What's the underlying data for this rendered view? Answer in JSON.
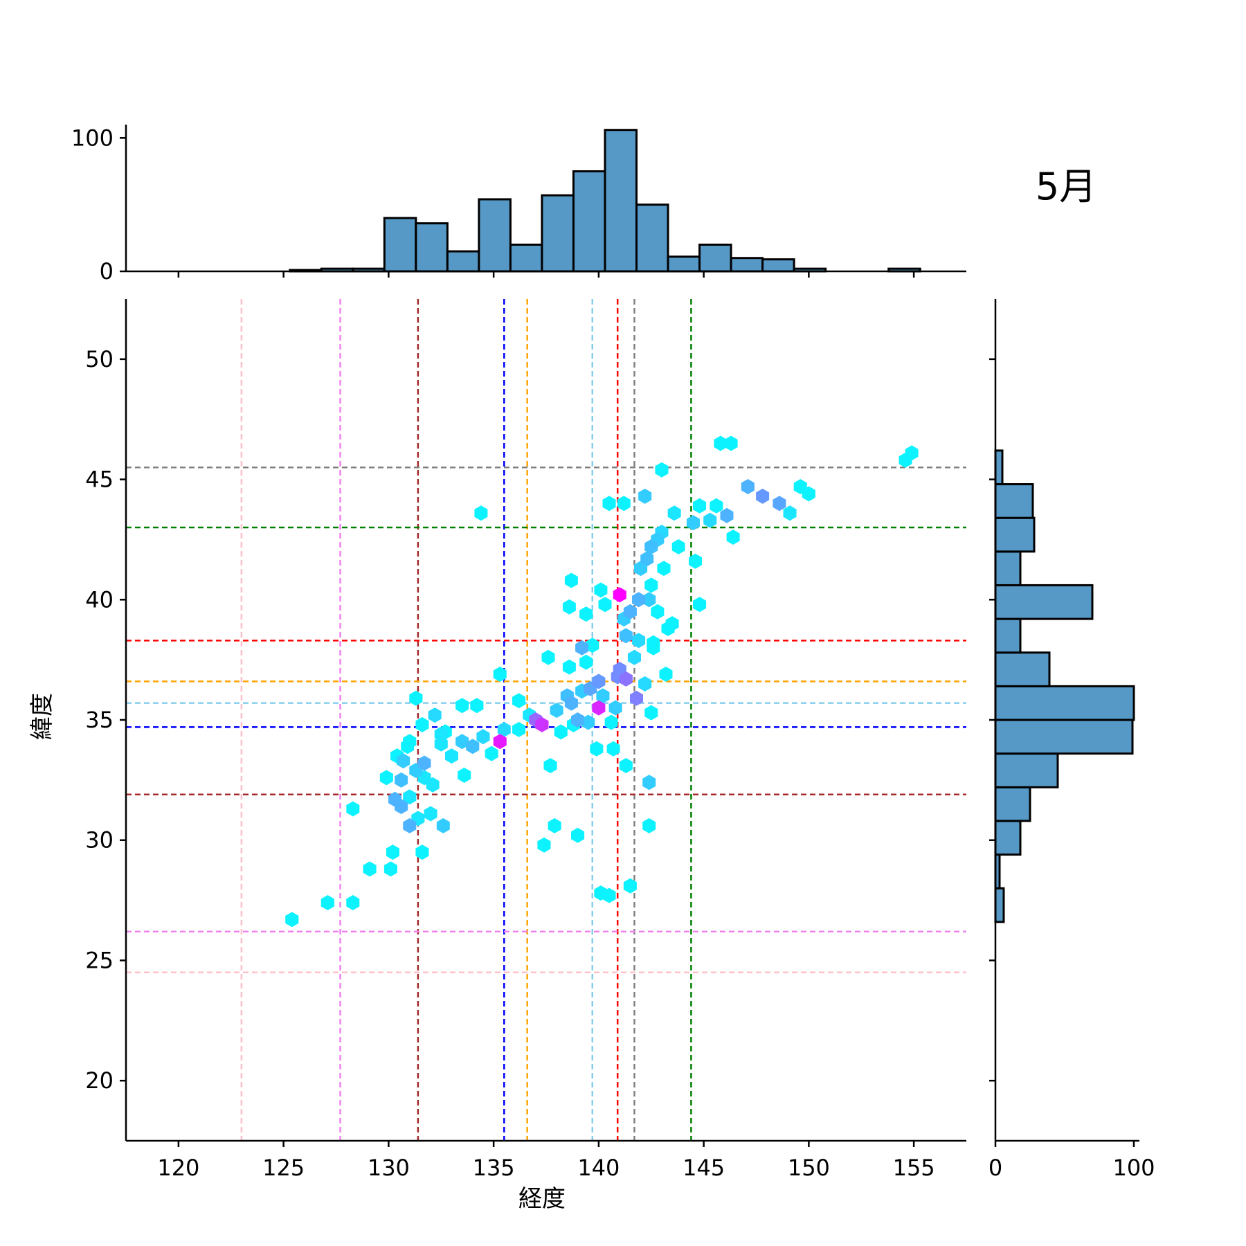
{
  "chart_data": {
    "type": "jointplot-hexbin",
    "title": "5月",
    "xlabel": "経度",
    "ylabel": "緯度",
    "xlim": [
      117.5,
      157.5
    ],
    "ylim": [
      17.5,
      52.5
    ],
    "xticks": [
      120,
      125,
      130,
      135,
      140,
      145,
      150,
      155
    ],
    "yticks": [
      20,
      25,
      30,
      35,
      40,
      45,
      50
    ],
    "colors": {
      "histogram_fill": "#5799c6",
      "histogram_edge": "#000000",
      "hex_low": "#00ffff",
      "hex_high": "#ff00ff"
    },
    "reference_lines": {
      "vertical": [
        {
          "x": 123.0,
          "color": "#ffc0cb"
        },
        {
          "x": 127.7,
          "color": "#ee82ee"
        },
        {
          "x": 131.4,
          "color": "#a52a2a"
        },
        {
          "x": 135.5,
          "color": "#0000ff"
        },
        {
          "x": 136.6,
          "color": "#ffa500"
        },
        {
          "x": 139.7,
          "color": "#87ceeb"
        },
        {
          "x": 140.9,
          "color": "#ff0000"
        },
        {
          "x": 141.7,
          "color": "#808080"
        },
        {
          "x": 144.4,
          "color": "#008000"
        }
      ],
      "horizontal": [
        {
          "y": 24.5,
          "color": "#ffc0cb"
        },
        {
          "y": 26.2,
          "color": "#ee82ee"
        },
        {
          "y": 31.9,
          "color": "#a52a2a"
        },
        {
          "y": 34.7,
          "color": "#0000ff"
        },
        {
          "y": 35.7,
          "color": "#87ceeb"
        },
        {
          "y": 36.6,
          "color": "#ffa500"
        },
        {
          "y": 38.3,
          "color": "#ff0000"
        },
        {
          "y": 43.0,
          "color": "#008000"
        },
        {
          "y": 45.5,
          "color": "#808080"
        }
      ]
    },
    "top_hist": {
      "bin_edges": [
        125.3,
        126.8,
        128.3,
        129.8,
        131.3,
        132.8,
        134.3,
        135.8,
        137.3,
        138.8,
        140.3,
        141.8,
        143.3,
        144.8,
        146.3,
        147.8,
        149.3,
        150.8,
        152.3,
        153.8,
        155.3
      ],
      "counts": [
        1,
        2,
        2,
        40,
        36,
        15,
        54,
        20,
        57,
        75,
        106,
        50,
        11,
        20,
        10,
        9,
        2,
        0,
        0,
        2
      ],
      "yticks": [
        0,
        100
      ]
    },
    "right_hist": {
      "bin_edges": [
        26.6,
        28.0,
        29.4,
        30.8,
        32.2,
        33.6,
        35.0,
        36.4,
        37.8,
        39.2,
        40.6,
        42.0,
        43.4,
        44.8,
        46.2
      ],
      "counts": [
        6,
        3,
        18,
        25,
        45,
        99,
        100,
        39,
        18,
        70,
        18,
        28,
        27,
        5
      ],
      "xticks": [
        0,
        100
      ]
    },
    "hexbins": [
      [
        141.0,
        40.2,
        1.0
      ],
      [
        135.3,
        34.1,
        0.9
      ],
      [
        137.3,
        34.8,
        0.8
      ],
      [
        140.0,
        35.5,
        0.85
      ],
      [
        137.0,
        35.0,
        0.6
      ],
      [
        141.3,
        36.7,
        0.55
      ],
      [
        141.8,
        35.9,
        0.5
      ],
      [
        140.9,
        36.8,
        0.45
      ],
      [
        141.0,
        37.1,
        0.45
      ],
      [
        140.0,
        36.6,
        0.4
      ],
      [
        139.6,
        36.3,
        0.35
      ],
      [
        138.7,
        35.7,
        0.3
      ],
      [
        139.0,
        35.0,
        0.3
      ],
      [
        138.5,
        36.0,
        0.25
      ],
      [
        139.2,
        38.0,
        0.3
      ],
      [
        139.5,
        34.9,
        0.2
      ],
      [
        140.2,
        36.0,
        0.2
      ],
      [
        140.8,
        35.5,
        0.2
      ],
      [
        141.3,
        38.5,
        0.25
      ],
      [
        141.2,
        39.2,
        0.2
      ],
      [
        141.5,
        39.5,
        0.3
      ],
      [
        141.9,
        40.0,
        0.3
      ],
      [
        142.4,
        40.0,
        0.2
      ],
      [
        142.0,
        41.3,
        0.2
      ],
      [
        142.3,
        41.7,
        0.25
      ],
      [
        142.5,
        42.2,
        0.25
      ],
      [
        142.8,
        42.5,
        0.2
      ],
      [
        143.0,
        42.8,
        0.15
      ],
      [
        144.5,
        43.2,
        0.2
      ],
      [
        145.3,
        43.3,
        0.15
      ],
      [
        146.1,
        43.5,
        0.3
      ],
      [
        147.1,
        44.7,
        0.3
      ],
      [
        147.8,
        44.3,
        0.4
      ],
      [
        148.6,
        44.0,
        0.35
      ],
      [
        149.1,
        43.6,
        0.1
      ],
      [
        141.7,
        37.6,
        0.15
      ],
      [
        141.9,
        38.3,
        0.15
      ],
      [
        139.2,
        36.2,
        0.2
      ],
      [
        138.0,
        35.4,
        0.2
      ],
      [
        136.7,
        35.2,
        0.1
      ],
      [
        134.5,
        34.3,
        0.15
      ],
      [
        134.0,
        33.9,
        0.25
      ],
      [
        133.5,
        34.1,
        0.2
      ],
      [
        132.5,
        34.4,
        0.1
      ],
      [
        131.7,
        33.2,
        0.3
      ],
      [
        131.3,
        32.9,
        0.2
      ],
      [
        130.6,
        32.5,
        0.25
      ],
      [
        130.3,
        31.7,
        0.3
      ],
      [
        130.6,
        31.4,
        0.3
      ],
      [
        131.0,
        30.6,
        0.3
      ],
      [
        130.7,
        33.3,
        0.2
      ],
      [
        131.0,
        31.8,
        0.1
      ],
      [
        131.4,
        30.9,
        0.1
      ],
      [
        132.0,
        31.1,
        0.1
      ],
      [
        132.6,
        30.6,
        0.2
      ],
      [
        132.1,
        32.3,
        0.1
      ],
      [
        131.7,
        32.6,
        0.1
      ],
      [
        132.2,
        35.2,
        0.15
      ],
      [
        132.5,
        34.0,
        0.1
      ],
      [
        133.0,
        33.5,
        0.1
      ],
      [
        142.4,
        32.4,
        0.2
      ],
      [
        142.2,
        44.3,
        0.2
      ],
      [
        143.0,
        45.4,
        0.05
      ],
      [
        145.8,
        46.5,
        0.05
      ],
      [
        146.3,
        46.5,
        0.05
      ],
      [
        154.9,
        46.1,
        0.05
      ],
      [
        154.6,
        45.8,
        0.05
      ],
      [
        149.6,
        44.7,
        0.05
      ],
      [
        150.0,
        44.4,
        0.05
      ],
      [
        146.4,
        42.6,
        0.05
      ],
      [
        144.6,
        41.6,
        0.05
      ],
      [
        144.8,
        39.8,
        0.05
      ],
      [
        143.3,
        38.8,
        0.05
      ],
      [
        143.5,
        39.0,
        0.05
      ],
      [
        143.2,
        36.9,
        0.05
      ],
      [
        142.6,
        38.0,
        0.05
      ],
      [
        142.6,
        38.2,
        0.05
      ],
      [
        142.4,
        30.6,
        0.05
      ],
      [
        141.5,
        28.1,
        0.05
      ],
      [
        140.5,
        27.7,
        0.05
      ],
      [
        140.1,
        27.8,
        0.05
      ],
      [
        139.0,
        30.2,
        0.05
      ],
      [
        137.9,
        30.6,
        0.05
      ],
      [
        137.4,
        29.8,
        0.05
      ],
      [
        137.7,
        33.1,
        0.05
      ],
      [
        137.6,
        37.6,
        0.05
      ],
      [
        135.3,
        36.9,
        0.05
      ],
      [
        134.4,
        43.6,
        0.05
      ],
      [
        131.3,
        35.9,
        0.05
      ],
      [
        133.5,
        35.6,
        0.05
      ],
      [
        134.2,
        35.6,
        0.05
      ],
      [
        128.3,
        27.4,
        0.05
      ],
      [
        127.1,
        27.4,
        0.05
      ],
      [
        125.4,
        26.7,
        0.05
      ],
      [
        129.1,
        28.8,
        0.05
      ],
      [
        130.1,
        28.8,
        0.05
      ],
      [
        130.2,
        29.5,
        0.05
      ],
      [
        131.6,
        29.5,
        0.05
      ],
      [
        128.3,
        31.3,
        0.05
      ],
      [
        129.9,
        32.6,
        0.05
      ],
      [
        130.4,
        33.5,
        0.05
      ],
      [
        131.0,
        34.1,
        0.05
      ],
      [
        133.6,
        32.7,
        0.05
      ],
      [
        134.9,
        33.6,
        0.05
      ],
      [
        136.2,
        35.8,
        0.05
      ],
      [
        138.6,
        37.2,
        0.05
      ],
      [
        140.5,
        44.0,
        0.05
      ],
      [
        141.2,
        44.0,
        0.05
      ],
      [
        138.7,
        40.8,
        0.05
      ],
      [
        138.6,
        39.7,
        0.05
      ],
      [
        139.4,
        39.4,
        0.05
      ],
      [
        140.1,
        40.4,
        0.05
      ],
      [
        140.3,
        39.8,
        0.05
      ],
      [
        139.7,
        38.1,
        0.05
      ],
      [
        139.4,
        37.4,
        0.05
      ],
      [
        140.6,
        34.9,
        0.05
      ],
      [
        139.9,
        33.8,
        0.05
      ],
      [
        140.7,
        33.8,
        0.05
      ],
      [
        141.3,
        33.1,
        0.05
      ],
      [
        142.2,
        36.5,
        0.15
      ],
      [
        142.5,
        35.3,
        0.05
      ],
      [
        138.8,
        34.8,
        0.05
      ],
      [
        138.2,
        34.5,
        0.05
      ],
      [
        136.2,
        34.6,
        0.05
      ],
      [
        135.5,
        34.6,
        0.15
      ],
      [
        132.7,
        34.5,
        0.05
      ],
      [
        131.6,
        34.8,
        0.05
      ],
      [
        130.9,
        33.9,
        0.05
      ],
      [
        143.6,
        43.6,
        0.1
      ],
      [
        144.8,
        43.9,
        0.05
      ],
      [
        145.6,
        43.9,
        0.05
      ],
      [
        143.8,
        42.2,
        0.05
      ],
      [
        143.1,
        41.3,
        0.05
      ],
      [
        142.5,
        40.6,
        0.05
      ],
      [
        142.8,
        39.5,
        0.05
      ]
    ]
  }
}
